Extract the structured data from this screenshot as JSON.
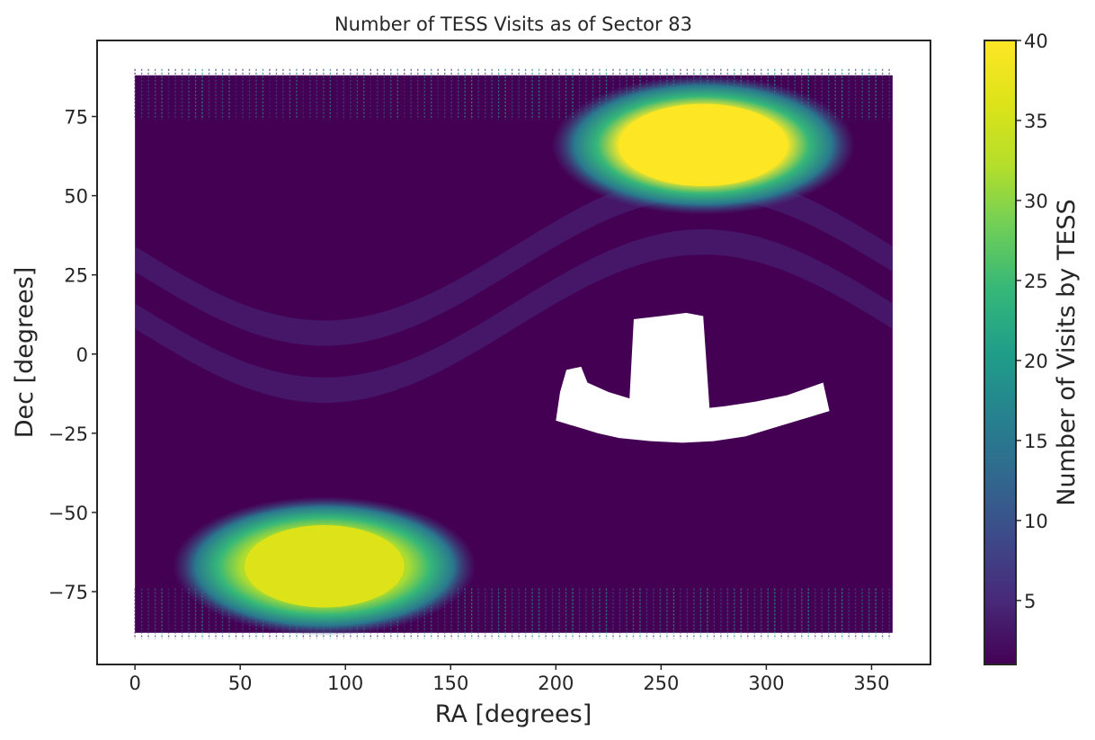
{
  "chart_data": {
    "type": "scatter",
    "title": "Number of TESS Visits as of Sector 83",
    "xlabel": "RA [degrees]",
    "ylabel": "Dec [degrees]",
    "xlim": [
      -18,
      378
    ],
    "ylim": [
      -98,
      99
    ],
    "xticks": [
      0,
      50,
      100,
      150,
      200,
      250,
      300,
      350
    ],
    "xtick_labels": [
      "0",
      "50",
      "100",
      "150",
      "200",
      "250",
      "300",
      "350"
    ],
    "yticks": [
      -75,
      -50,
      -25,
      0,
      25,
      50,
      75
    ],
    "ytick_labels": [
      "−75",
      "−50",
      "−25",
      "0",
      "25",
      "50",
      "75"
    ],
    "grid": false,
    "colormap": "viridis",
    "colorbar": {
      "label": "Number of Visits by TESS",
      "range": [
        1,
        40
      ],
      "ticks": [
        5,
        10,
        15,
        20,
        25,
        30,
        35,
        40
      ],
      "tick_labels": [
        "5",
        "10",
        "15",
        "20",
        "25",
        "30",
        "35",
        "40"
      ]
    },
    "regions": [
      {
        "name": "northern-continuous-viewing-zone",
        "ra_center": 270,
        "dec_center": 66,
        "visits": 40
      },
      {
        "name": "southern-continuous-viewing-zone",
        "ra_center": 90,
        "dec_center": -67,
        "visits": 36
      },
      {
        "name": "background",
        "visits": 2
      },
      {
        "name": "ecliptic-band-upper",
        "visits": 6
      },
      {
        "name": "ecliptic-band-lower",
        "visits": 6
      },
      {
        "name": "unobserved-gap",
        "visits": 0
      }
    ],
    "unobserved_region_outline": [
      [
        200,
        -21
      ],
      [
        210,
        -23
      ],
      [
        220,
        -25
      ],
      [
        230,
        -26.5
      ],
      [
        245,
        -27.5
      ],
      [
        260,
        -28
      ],
      [
        275,
        -27.5
      ],
      [
        290,
        -26
      ],
      [
        305,
        -23
      ],
      [
        320,
        -20
      ],
      [
        330,
        -18
      ],
      [
        327,
        -9
      ],
      [
        310,
        -13
      ],
      [
        295,
        -15
      ],
      [
        280,
        -16.5
      ],
      [
        273,
        -17
      ],
      [
        270,
        12
      ],
      [
        262,
        13
      ],
      [
        250,
        12
      ],
      [
        237,
        11
      ],
      [
        235,
        -14
      ],
      [
        225,
        -12
      ],
      [
        215,
        -9
      ],
      [
        212,
        -4
      ],
      [
        205,
        -5
      ],
      [
        202,
        -12
      ]
    ]
  }
}
